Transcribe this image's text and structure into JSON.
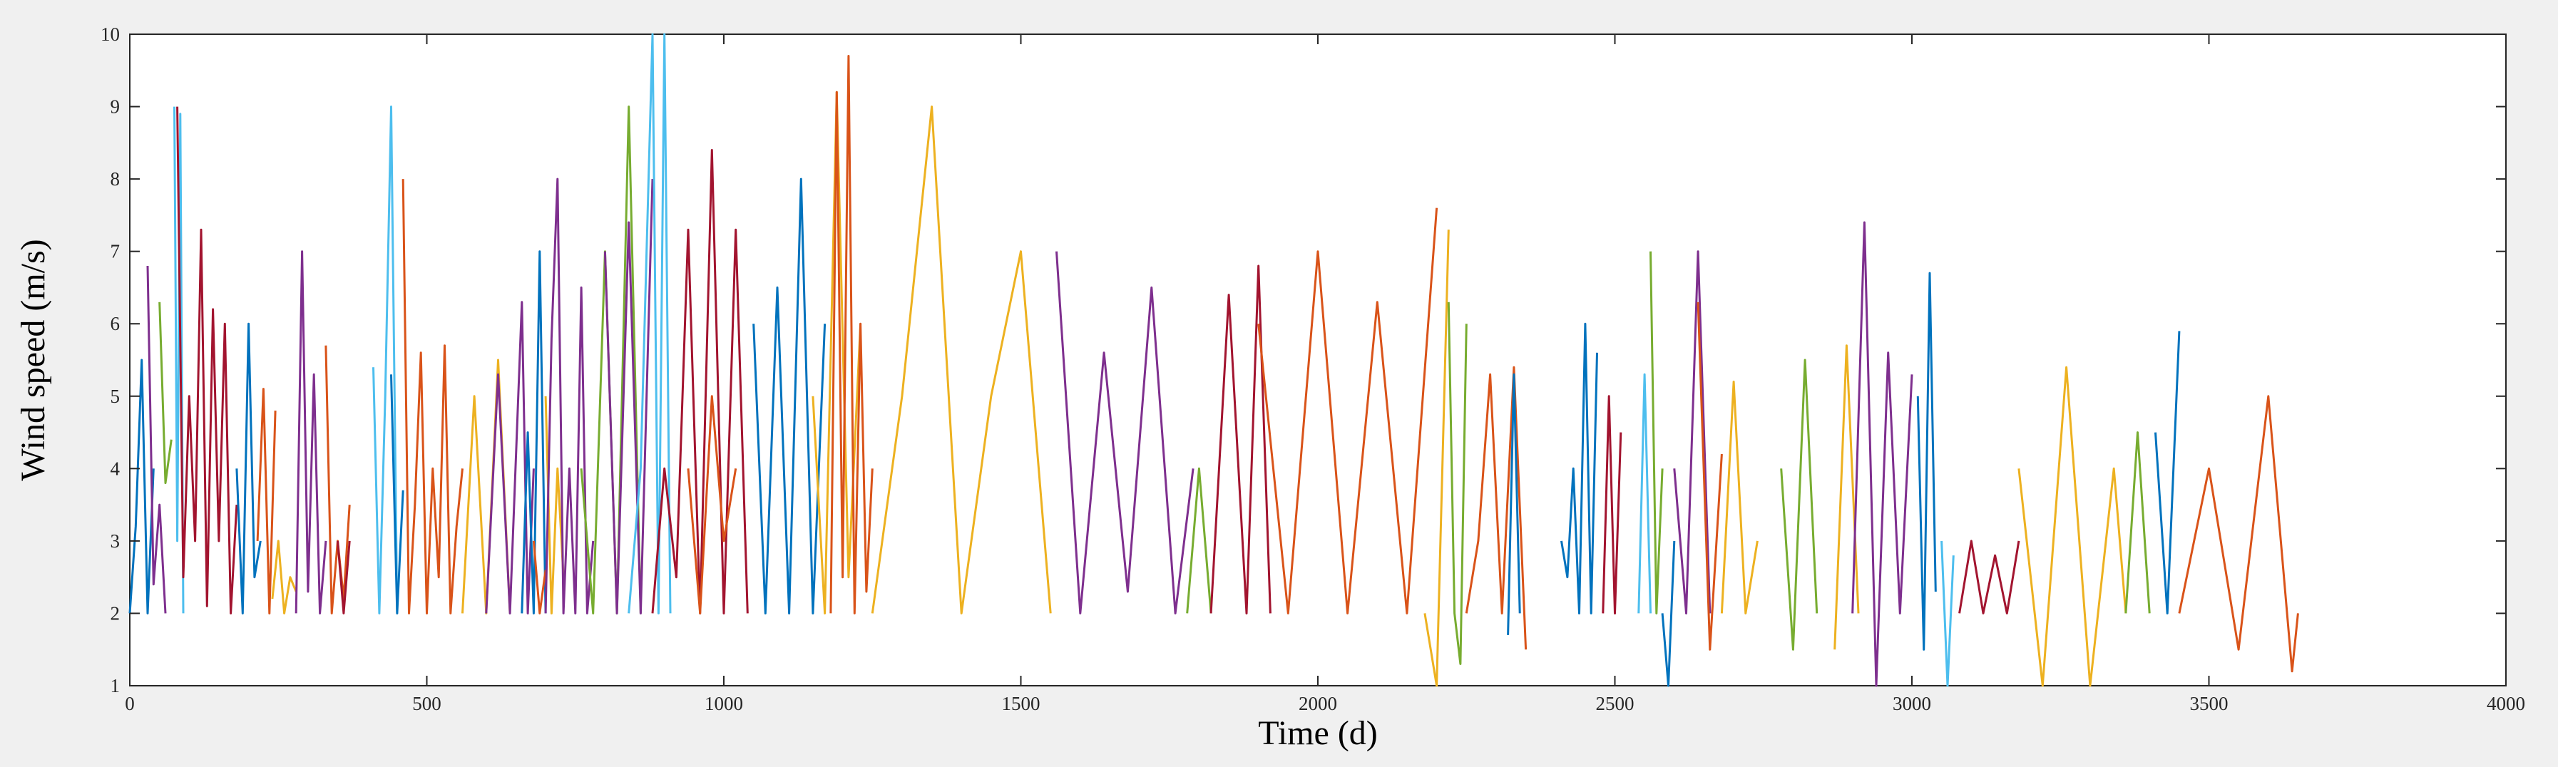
{
  "chart_data": {
    "type": "line",
    "title": "",
    "xlabel": "Time (d)",
    "ylabel": "Wind speed (m/s)",
    "xlim": [
      0,
      4000
    ],
    "ylim": [
      1,
      10
    ],
    "x_ticks": [
      0,
      500,
      1000,
      1500,
      2000,
      2500,
      3000,
      3500,
      4000
    ],
    "y_ticks": [
      1,
      2,
      3,
      4,
      5,
      6,
      7,
      8,
      9,
      10
    ],
    "grid": false,
    "legend": "none",
    "series_colors": [
      "#0072BD",
      "#D95319",
      "#EDB120",
      "#7E2F8E",
      "#77AC30",
      "#4DBEEE",
      "#A2142F"
    ],
    "series": [
      {
        "color": "#0072BD",
        "x": [
          0,
          10,
          20,
          30,
          40
        ],
        "y": [
          2.0,
          3.2,
          5.5,
          2.0,
          4.0
        ]
      },
      {
        "color": "#7E2F8E",
        "x": [
          30,
          40,
          50,
          60
        ],
        "y": [
          6.8,
          2.4,
          3.5,
          2.0
        ]
      },
      {
        "color": "#77AC30",
        "x": [
          50,
          60,
          70
        ],
        "y": [
          6.3,
          3.8,
          4.4
        ]
      },
      {
        "color": "#4DBEEE",
        "x": [
          75,
          80,
          85,
          90
        ],
        "y": [
          9.0,
          3.0,
          8.9,
          2.0
        ]
      },
      {
        "color": "#A2142F",
        "x": [
          80,
          90,
          100,
          110,
          120,
          130,
          140,
          150,
          160,
          170,
          180
        ],
        "y": [
          9.0,
          2.5,
          5.0,
          3.0,
          7.3,
          2.1,
          6.2,
          3.0,
          6.0,
          2.0,
          3.5
        ]
      },
      {
        "color": "#0072BD",
        "x": [
          180,
          190,
          200,
          210,
          220
        ],
        "y": [
          4.0,
          2.0,
          6.0,
          2.5,
          3.0
        ]
      },
      {
        "color": "#D95319",
        "x": [
          215,
          225,
          235,
          245
        ],
        "y": [
          3.0,
          5.1,
          2.0,
          4.8
        ]
      },
      {
        "color": "#EDB120",
        "x": [
          240,
          250,
          260,
          270,
          280
        ],
        "y": [
          2.2,
          3.0,
          2.0,
          2.5,
          2.3
        ]
      },
      {
        "color": "#7E2F8E",
        "x": [
          280,
          290,
          300,
          310,
          320,
          330
        ],
        "y": [
          2.0,
          7.0,
          2.3,
          5.3,
          2.0,
          3.0
        ]
      },
      {
        "color": "#D95319",
        "x": [
          330,
          340,
          350,
          360,
          370
        ],
        "y": [
          5.7,
          2.0,
          3.0,
          2.2,
          3.5
        ]
      },
      {
        "color": "#A2142F",
        "x": [
          350,
          360,
          370
        ],
        "y": [
          3.0,
          2.0,
          3.0
        ]
      },
      {
        "color": "#4DBEEE",
        "x": [
          410,
          420,
          430,
          440,
          450
        ],
        "y": [
          5.4,
          2.0,
          5.0,
          9.0,
          2.0
        ]
      },
      {
        "color": "#0072BD",
        "x": [
          440,
          450,
          460
        ],
        "y": [
          5.3,
          2.0,
          3.7
        ]
      },
      {
        "color": "#D95319",
        "x": [
          460,
          470,
          480,
          490,
          500,
          510,
          520,
          530,
          540,
          550,
          560
        ],
        "y": [
          8.0,
          2.0,
          3.5,
          5.6,
          2.0,
          4.0,
          2.5,
          5.7,
          2.0,
          3.2,
          4.0
        ]
      },
      {
        "color": "#EDB120",
        "x": [
          560,
          580,
          600,
          620,
          640
        ],
        "y": [
          2.0,
          5.0,
          2.0,
          5.5,
          2.0
        ]
      },
      {
        "color": "#7E2F8E",
        "x": [
          600,
          620,
          640,
          660,
          670,
          680
        ],
        "y": [
          2.0,
          5.3,
          2.0,
          6.3,
          2.0,
          4.0
        ]
      },
      {
        "color": "#0072BD",
        "x": [
          660,
          670,
          680,
          690,
          700
        ],
        "y": [
          2.0,
          4.5,
          2.0,
          7.0,
          2.0
        ]
      },
      {
        "color": "#D95319",
        "x": [
          680,
          690,
          700
        ],
        "y": [
          3.0,
          2.0,
          2.6
        ]
      },
      {
        "color": "#EDB120",
        "x": [
          700,
          710,
          720,
          730
        ],
        "y": [
          5.0,
          2.0,
          4.0,
          2.5
        ]
      },
      {
        "color": "#7E2F8E",
        "x": [
          700,
          710,
          720,
          730,
          740,
          750,
          760,
          770,
          780
        ],
        "y": [
          2.0,
          5.8,
          8.0,
          2.0,
          4.0,
          2.0,
          6.5,
          2.0,
          3.0
        ]
      },
      {
        "color": "#77AC30",
        "x": [
          760,
          780,
          800,
          820,
          840,
          860
        ],
        "y": [
          4.0,
          2.0,
          7.0,
          2.0,
          9.0,
          2.0
        ]
      },
      {
        "color": "#7E2F8E",
        "x": [
          800,
          820,
          840,
          860,
          880
        ],
        "y": [
          7.0,
          2.0,
          7.4,
          2.0,
          8.0
        ]
      },
      {
        "color": "#4DBEEE",
        "x": [
          840,
          860,
          880,
          890,
          900,
          910
        ],
        "y": [
          2.0,
          4.0,
          10.0,
          2.0,
          10.0,
          2.0
        ]
      },
      {
        "color": "#A2142F",
        "x": [
          880,
          900,
          920,
          940,
          960,
          980,
          1000,
          1020,
          1040
        ],
        "y": [
          2.0,
          4.0,
          2.5,
          7.3,
          2.0,
          8.4,
          2.0,
          7.3,
          2.0
        ]
      },
      {
        "color": "#D95319",
        "x": [
          940,
          960,
          980,
          1000,
          1020
        ],
        "y": [
          4.0,
          2.0,
          5.0,
          3.0,
          4.0
        ]
      },
      {
        "color": "#0072BD",
        "x": [
          1050,
          1070,
          1090,
          1110,
          1130,
          1150,
          1170
        ],
        "y": [
          6.0,
          2.0,
          6.5,
          2.0,
          8.0,
          2.0,
          6.0
        ]
      },
      {
        "color": "#EDB120",
        "x": [
          1150,
          1170,
          1190,
          1210,
          1230
        ],
        "y": [
          5.0,
          2.0,
          9.2,
          2.5,
          6.0
        ]
      },
      {
        "color": "#D95319",
        "x": [
          1180,
          1190,
          1200,
          1210,
          1220,
          1230,
          1240,
          1250
        ],
        "y": [
          2.0,
          9.2,
          2.5,
          9.7,
          2.0,
          6.0,
          2.3,
          4.0
        ]
      },
      {
        "color": "#EDB120",
        "x": [
          1250,
          1300,
          1350,
          1400,
          1450,
          1500,
          1550
        ],
        "y": [
          2.0,
          5.0,
          9.0,
          2.0,
          5.0,
          7.0,
          2.0
        ]
      },
      {
        "color": "#7E2F8E",
        "x": [
          1560,
          1600,
          1640,
          1680,
          1720,
          1760,
          1790
        ],
        "y": [
          7.0,
          2.0,
          5.6,
          2.3,
          6.5,
          2.0,
          4.0
        ]
      },
      {
        "color": "#77AC30",
        "x": [
          1780,
          1800,
          1820
        ],
        "y": [
          2.0,
          4.0,
          2.0
        ]
      },
      {
        "color": "#A2142F",
        "x": [
          1820,
          1850,
          1880,
          1900,
          1920
        ],
        "y": [
          2.0,
          6.4,
          2.0,
          6.8,
          2.0
        ]
      },
      {
        "color": "#D95319",
        "x": [
          1900,
          1950,
          2000,
          2050,
          2100,
          2150,
          2200
        ],
        "y": [
          6.0,
          2.0,
          7.0,
          2.0,
          6.3,
          2.0,
          7.6
        ]
      },
      {
        "color": "#EDB120",
        "x": [
          2180,
          2200,
          2220
        ],
        "y": [
          2.0,
          1.0,
          7.3
        ]
      },
      {
        "color": "#77AC30",
        "x": [
          2220,
          2230,
          2240,
          2250
        ],
        "y": [
          6.3,
          2.0,
          1.3,
          6.0
        ]
      },
      {
        "color": "#D95319",
        "x": [
          2250,
          2270,
          2290,
          2310,
          2330,
          2350
        ],
        "y": [
          2.0,
          3.0,
          5.3,
          2.0,
          5.4,
          1.5
        ]
      },
      {
        "color": "#0072BD",
        "x": [
          2320,
          2330,
          2340
        ],
        "y": [
          1.7,
          5.3,
          2.0
        ]
      },
      {
        "color": "#0072BD",
        "x": [
          2410,
          2420,
          2430,
          2440,
          2450,
          2460,
          2470
        ],
        "y": [
          3.0,
          2.5,
          4.0,
          2.0,
          6.0,
          2.0,
          5.6
        ]
      },
      {
        "color": "#A2142F",
        "x": [
          2480,
          2490,
          2500,
          2510
        ],
        "y": [
          2.0,
          5.0,
          2.0,
          4.5
        ]
      },
      {
        "color": "#4DBEEE",
        "x": [
          2540,
          2550,
          2560
        ],
        "y": [
          2.0,
          5.3,
          2.0
        ]
      },
      {
        "color": "#77AC30",
        "x": [
          2560,
          2570,
          2580
        ],
        "y": [
          7.0,
          2.0,
          4.0
        ]
      },
      {
        "color": "#0072BD",
        "x": [
          2580,
          2590,
          2600
        ],
        "y": [
          2.0,
          1.0,
          3.0
        ]
      },
      {
        "color": "#7E2F8E",
        "x": [
          2600,
          2620,
          2640,
          2660
        ],
        "y": [
          4.0,
          2.0,
          7.0,
          2.0
        ]
      },
      {
        "color": "#D95319",
        "x": [
          2640,
          2660,
          2680
        ],
        "y": [
          6.3,
          1.5,
          4.2
        ]
      },
      {
        "color": "#EDB120",
        "x": [
          2680,
          2700,
          2720,
          2740
        ],
        "y": [
          2.0,
          5.2,
          2.0,
          3.0
        ]
      },
      {
        "color": "#77AC30",
        "x": [
          2780,
          2800,
          2820,
          2840
        ],
        "y": [
          4.0,
          1.5,
          5.5,
          2.0
        ]
      },
      {
        "color": "#EDB120",
        "x": [
          2870,
          2890,
          2910
        ],
        "y": [
          1.5,
          5.7,
          2.0
        ]
      },
      {
        "color": "#7E2F8E",
        "x": [
          2900,
          2920,
          2940,
          2960,
          2980,
          3000
        ],
        "y": [
          2.0,
          7.4,
          1.0,
          5.6,
          2.0,
          5.3
        ]
      },
      {
        "color": "#0072BD",
        "x": [
          3010,
          3020,
          3030,
          3040
        ],
        "y": [
          5.0,
          1.5,
          6.7,
          2.3
        ]
      },
      {
        "color": "#4DBEEE",
        "x": [
          3050,
          3060,
          3070
        ],
        "y": [
          3.0,
          1.0,
          2.8
        ]
      },
      {
        "color": "#A2142F",
        "x": [
          3080,
          3100,
          3120,
          3140,
          3160,
          3180
        ],
        "y": [
          2.0,
          3.0,
          2.0,
          2.8,
          2.0,
          3.0
        ]
      },
      {
        "color": "#EDB120",
        "x": [
          3180,
          3220,
          3260,
          3300,
          3340,
          3360
        ],
        "y": [
          4.0,
          1.0,
          5.4,
          1.0,
          4.0,
          2.0
        ]
      },
      {
        "color": "#77AC30",
        "x": [
          3360,
          3380,
          3400
        ],
        "y": [
          2.0,
          4.5,
          2.0
        ]
      },
      {
        "color": "#0072BD",
        "x": [
          3410,
          3430,
          3450
        ],
        "y": [
          4.5,
          2.0,
          5.9
        ]
      },
      {
        "color": "#D95319",
        "x": [
          3450,
          3500,
          3550,
          3600,
          3640,
          3650
        ],
        "y": [
          2.0,
          4.0,
          1.5,
          5.0,
          1.2,
          2.0
        ]
      }
    ]
  }
}
